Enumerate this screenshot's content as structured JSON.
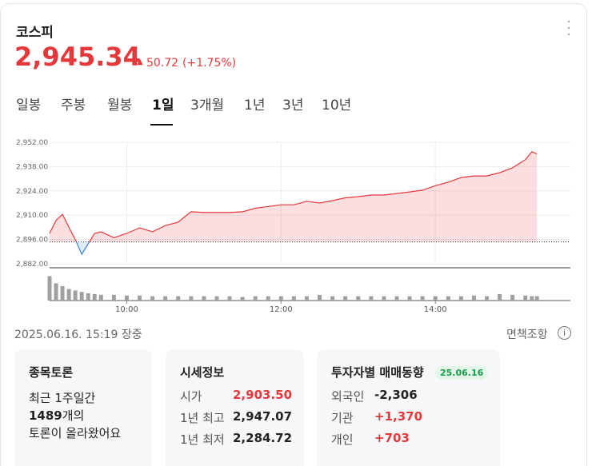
{
  "header": {
    "title": "코스피",
    "price": "2,945.34",
    "change": "50.72",
    "change_pct": "(+1.75%)"
  },
  "tabs": [
    "일봉",
    "주봉",
    "월봉",
    "1일",
    "3개월",
    "1년",
    "3년",
    "10년"
  ],
  "selected_tab": 3,
  "chart_data": {
    "type": "line",
    "x": [
      "09:00",
      "09:05",
      "09:10",
      "09:15",
      "09:20",
      "09:25",
      "09:30",
      "09:35",
      "09:40",
      "09:50",
      "10:00",
      "10:10",
      "10:20",
      "10:30",
      "10:40",
      "10:50",
      "11:00",
      "11:10",
      "11:20",
      "11:30",
      "11:40",
      "11:50",
      "12:00",
      "12:10",
      "12:20",
      "12:30",
      "12:40",
      "12:50",
      "13:00",
      "13:10",
      "13:20",
      "13:30",
      "13:40",
      "13:50",
      "14:00",
      "14:10",
      "14:20",
      "14:30",
      "14:40",
      "14:50",
      "15:00",
      "15:10",
      "15:15",
      "15:19"
    ],
    "values": [
      2899.5,
      2907,
      2910.5,
      2903,
      2896,
      2887.5,
      2893.5,
      2899.5,
      2900.4,
      2897,
      2899.5,
      2902.7,
      2900.4,
      2904,
      2906,
      2912,
      2911.5,
      2911.5,
      2911.5,
      2912,
      2914,
      2915,
      2916,
      2916,
      2918,
      2917,
      2918.4,
      2920,
      2920.7,
      2921.6,
      2921.6,
      2922.5,
      2923.4,
      2924.4,
      2927,
      2929,
      2931.7,
      2932.6,
      2932.6,
      2934.5,
      2937.3,
      2942,
      2946.5,
      2945.34
    ],
    "base": 2894.62,
    "up_color": "#e5383b",
    "down_color": "#3b82d6",
    "volume": [
      34,
      24,
      20,
      16,
      14,
      12,
      10,
      9,
      8,
      8,
      7,
      7,
      6,
      6,
      6,
      6,
      6,
      6,
      6,
      5,
      6,
      6,
      6,
      6,
      6,
      8,
      6,
      6,
      6,
      6,
      6,
      6,
      6,
      6,
      6,
      6,
      6,
      7,
      6,
      9,
      8,
      7,
      6,
      6
    ],
    "volume_ylim": [
      0,
      40
    ],
    "volume_color": "#a0a0a0",
    "xlim": [
      "09:00",
      "15:45"
    ],
    "xticks": [
      "10:00",
      "12:00",
      "14:00"
    ],
    "ylim": [
      2882,
      2952
    ],
    "yticks": [
      {
        "value": 2882,
        "label": "2,882.00"
      },
      {
        "value": 2896,
        "label": "2,896.00"
      },
      {
        "value": 2910,
        "label": "2,910.00"
      },
      {
        "value": 2924,
        "label": "2,924.00"
      },
      {
        "value": 2938,
        "label": "2,938.00"
      },
      {
        "value": 2952,
        "label": "2,952.00"
      }
    ],
    "grid": true
  },
  "footer": {
    "timestamp": "2025.06.16. 15:19 장중",
    "disclaimer": "면책조항"
  },
  "cards": [
    {
      "title": "종목토론",
      "line1": "최근 1주일간",
      "count": "1489",
      "count_suffix": "개의",
      "line3": "토론이 올라왔어요"
    },
    {
      "title": "시세정보",
      "rows": [
        {
          "label": "시가",
          "value": "2,903.50",
          "color": "#e5383b"
        },
        {
          "label": "1년 최고",
          "value": "2,947.07",
          "color": "#222222"
        },
        {
          "label": "1년 최저",
          "value": "2,284.72",
          "color": "#222222"
        }
      ]
    },
    {
      "title": "투자자별 매매동향",
      "badge": "25.06.16",
      "rows": [
        {
          "label": "외국인",
          "value": "-2,306",
          "color": "#222222"
        },
        {
          "label": "기관",
          "value": "+1,370",
          "color": "#e5383b"
        },
        {
          "label": "개인",
          "value": "+703",
          "color": "#e5383b"
        }
      ]
    }
  ]
}
